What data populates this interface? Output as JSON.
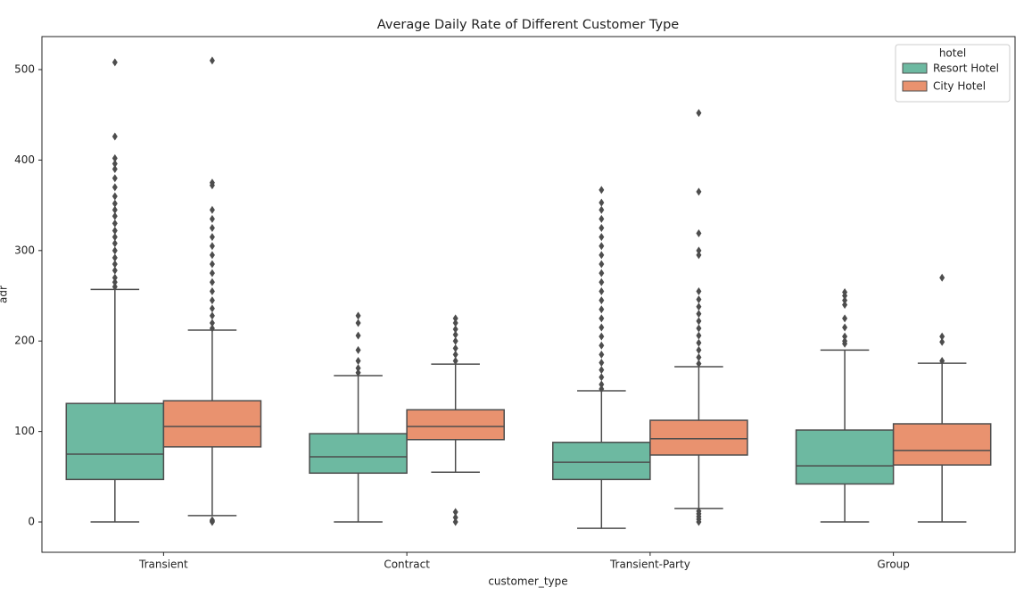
{
  "chart_data": {
    "type": "box",
    "title": "Average Daily Rate of Different Customer Type",
    "xlabel": "customer_type",
    "ylabel": "adr",
    "categories": [
      "Transient",
      "Contract",
      "Transient-Party",
      "Group"
    ],
    "ylim": [
      -33.5,
      536.5
    ],
    "yticks": [
      0,
      100,
      200,
      300,
      400,
      500
    ],
    "legend_title": "hotel",
    "legend": "upper right",
    "edge_color": "#4d4d4d",
    "series": [
      {
        "name": "Resort Hotel",
        "color": "#6db9a1",
        "boxes": [
          {
            "low": 0,
            "q1": 47,
            "median": 75,
            "q3": 131,
            "high": 257,
            "outliers": [
              260,
              265,
              270,
              278,
              285,
              292,
              300,
              308,
              315,
              322,
              330,
              338,
              345,
              352,
              360,
              370,
              380,
              390,
              396,
              402,
              426,
              508
            ]
          },
          {
            "low": 0,
            "q1": 54,
            "median": 72,
            "q3": 97.6,
            "high": 161.7,
            "outliers": [
              165,
              170,
              178,
              190,
              206,
              220,
              228
            ]
          },
          {
            "low": -7,
            "q1": 47,
            "median": 66,
            "q3": 88,
            "high": 145,
            "outliers": [
              147,
              152,
              160,
              168,
              176,
              185,
              195,
              205,
              215,
              225,
              235,
              245,
              255,
              265,
              275,
              285,
              295,
              305,
              315,
              325,
              335,
              345,
              353,
              367
            ]
          },
          {
            "low": 0,
            "q1": 42,
            "median": 62,
            "q3": 101.6,
            "high": 190,
            "outliers": [
              197,
              200,
              205,
              215,
              225,
              240,
              245,
              250,
              254
            ]
          }
        ]
      },
      {
        "name": "City Hotel",
        "color": "#e9926f",
        "boxes": [
          {
            "low": 7,
            "q1": 83,
            "median": 105.5,
            "q3": 134,
            "high": 212,
            "outliers": [
              0,
              1,
              2,
              214,
              220,
              228,
              236,
              245,
              255,
              265,
              275,
              285,
              295,
              305,
              315,
              325,
              335,
              345,
              372,
              375,
              510
            ]
          },
          {
            "low": 55,
            "q1": 91,
            "median": 105.5,
            "q3": 124,
            "high": 174.5,
            "outliers": [
              0,
              5,
              11,
              178,
              185,
              192,
              200,
              207,
              213,
              220,
              225
            ]
          },
          {
            "low": 15,
            "q1": 74,
            "median": 92,
            "q3": 112.4,
            "high": 171.6,
            "outliers": [
              0,
              3,
              6,
              9,
              12,
              175,
              182,
              190,
              198,
              206,
              214,
              222,
              230,
              238,
              246,
              255,
              295,
              300,
              319,
              365,
              452
            ]
          },
          {
            "low": 0,
            "q1": 63,
            "median": 79,
            "q3": 108.5,
            "high": 175.5,
            "outliers": [
              178,
              199,
              205,
              270
            ]
          }
        ]
      }
    ]
  }
}
